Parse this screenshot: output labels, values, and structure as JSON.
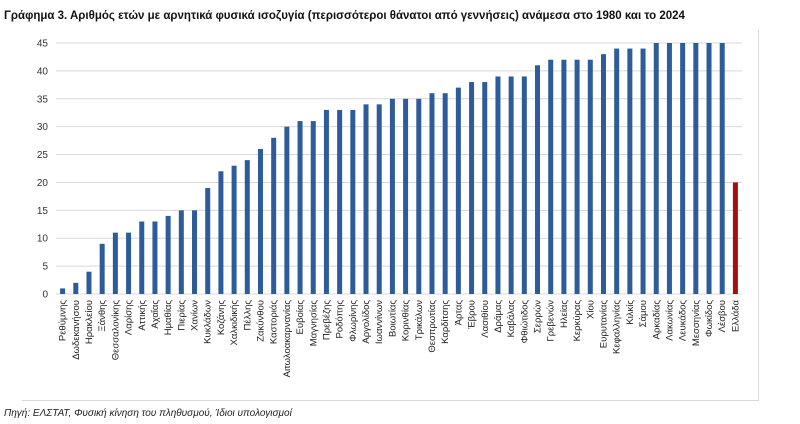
{
  "chart_data": {
    "type": "bar",
    "title": "Γράφημα 3. Αριθμός ετών με αρνητικά φυσικά ισοζυγία (περισσότεροι θάνατοι από γεννήσεις) ανάμεσα στο 1980 και το 2024",
    "xlabel": "",
    "ylabel": "",
    "ylim": [
      0,
      45
    ],
    "yticks": [
      0,
      5,
      10,
      15,
      20,
      25,
      30,
      35,
      40,
      45
    ],
    "grid": true,
    "legend": "none",
    "categories": [
      "Ρεθύμνης",
      "Δωδεκανήσου",
      "Ηρακλείου",
      "Ξάνθης",
      "Θεσσαλονίκης",
      "Λαρίσης",
      "Αττικής",
      "Αχαΐας",
      "Ημαθίας",
      "Πιερίας",
      "Χανίων",
      "Κυκλάδων",
      "Κοζάνης",
      "Χαλκιδικής",
      "Πέλλης",
      "Ζακύνθου",
      "Καστοριάς",
      "Αιτωλοακαρνανίας",
      "Ευβοίας",
      "Μαγνησίας",
      "Πρεβέζης",
      "Ροδόπης",
      "Φλωρίνης",
      "Αργολίδος",
      "Ιωαννίνων",
      "Βοιωτίας",
      "Κορινθίας",
      "Τρικάλων",
      "Θεσπρωτίας",
      "Καρδίτσης",
      "Άρτας",
      "Έβρου",
      "Λασιθίου",
      "Δράμας",
      "Καβάλας",
      "Φθιώτιδος",
      "Σερρών",
      "Γρεβενών",
      "Ηλείας",
      "Κερκύρας",
      "Χίου",
      "Ευρυτανίας",
      "Κεφαλληνίας",
      "Κιλκίς",
      "Σάμου",
      "Αρκαδίας",
      "Λακωνίας",
      "Λευκάδος",
      "Μεσσηνίας",
      "Φωκίδος",
      "Λέσβου",
      "Ελλάδα"
    ],
    "values": [
      1,
      2,
      4,
      9,
      11,
      11,
      13,
      13,
      14,
      15,
      15,
      19,
      22,
      23,
      24,
      26,
      28,
      30,
      31,
      31,
      33,
      33,
      33,
      34,
      34,
      35,
      35,
      35,
      36,
      36,
      37,
      38,
      38,
      39,
      39,
      39,
      41,
      42,
      42,
      42,
      42,
      43,
      44,
      44,
      44,
      45,
      45,
      45,
      45,
      45,
      45,
      20
    ],
    "colors": {
      "bar": "#2e5c9a",
      "highlight": "#a50f0f",
      "highlight_category": "Ελλάδα",
      "grid": "#d9d9d9"
    }
  },
  "source": "Πηγή: ΕΛΣΤΑΤ, Φυσική κίνηση του πληθυσμού, Ίδιοι υπολογισμοί"
}
